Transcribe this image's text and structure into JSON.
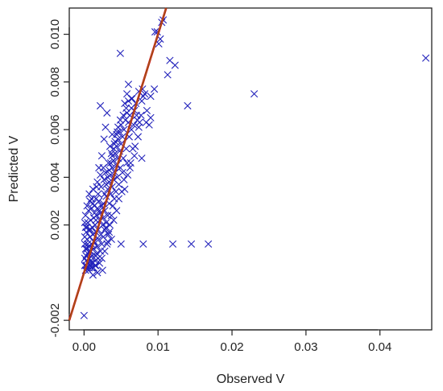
{
  "chart_data": {
    "type": "scatter",
    "title": "",
    "xlabel": "Observed V",
    "ylabel": "Predicted V",
    "xlim": [
      -0.002,
      0.047
    ],
    "ylim": [
      -0.0024,
      0.0111
    ],
    "xticks": [
      0.0,
      0.01,
      0.02,
      0.03,
      0.04
    ],
    "xtick_labels": [
      "0.00",
      "0.01",
      "0.02",
      "0.03",
      "0.04"
    ],
    "yticks": [
      -0.002,
      0.002,
      0.004,
      0.006,
      0.008,
      0.01
    ],
    "ytick_labels": [
      "-0.002",
      "0.002",
      "0.004",
      "0.006",
      "0.008",
      "0.010"
    ],
    "grid": false,
    "legend": "none",
    "marker": "x",
    "colors": {
      "points": "#2222bb",
      "fit_line": "#cc1111",
      "fit_line_inner": "#8a7a1a"
    },
    "reference_line": {
      "slope": 1.0,
      "intercept": 0.0
    },
    "series": [
      {
        "points": [
          [
            0.0,
            -0.0018
          ],
          [
            0.0002,
            0.0001
          ],
          [
            0.0004,
            0.0002
          ],
          [
            0.0006,
            0.0001
          ],
          [
            0.0008,
            0.0003
          ],
          [
            0.001,
            0.0002
          ],
          [
            0.0012,
            0.0004
          ],
          [
            0.0003,
            0.0005
          ],
          [
            0.0007,
            0.0006
          ],
          [
            0.0011,
            0.0007
          ],
          [
            0.0015,
            0.0005
          ],
          [
            0.0005,
            0.0008
          ],
          [
            0.0009,
            0.0009
          ],
          [
            0.0013,
            0.001
          ],
          [
            0.0017,
            0.0008
          ],
          [
            0.0002,
            0.001
          ],
          [
            0.0006,
            0.0011
          ],
          [
            0.001,
            0.0012
          ],
          [
            0.0014,
            0.0013
          ],
          [
            0.0018,
            0.0011
          ],
          [
            0.0004,
            0.0014
          ],
          [
            0.0008,
            0.0015
          ],
          [
            0.0012,
            0.0016
          ],
          [
            0.0016,
            0.0017
          ],
          [
            0.002,
            0.0014
          ],
          [
            0.0003,
            0.0017
          ],
          [
            0.0007,
            0.0018
          ],
          [
            0.0011,
            0.0019
          ],
          [
            0.0015,
            0.002
          ],
          [
            0.0019,
            0.0018
          ],
          [
            0.0023,
            0.0016
          ],
          [
            0.0005,
            0.0021
          ],
          [
            0.0009,
            0.0022
          ],
          [
            0.0013,
            0.0023
          ],
          [
            0.0017,
            0.0024
          ],
          [
            0.0021,
            0.0022
          ],
          [
            0.0025,
            0.002
          ],
          [
            0.0002,
            0.0024
          ],
          [
            0.0006,
            0.0026
          ],
          [
            0.001,
            0.0027
          ],
          [
            0.0014,
            0.0028
          ],
          [
            0.0018,
            0.0027
          ],
          [
            0.0022,
            0.0025
          ],
          [
            0.0008,
            0.003
          ],
          [
            0.0012,
            0.0029
          ],
          [
            0.0016,
            0.0031
          ],
          [
            0.002,
            0.003
          ],
          [
            0.0024,
            0.0028
          ],
          [
            0.0028,
            0.0026
          ],
          [
            0.0003,
            0.0003
          ],
          [
            0.0001,
            0.0006
          ],
          [
            0.0005,
            0.0012
          ],
          [
            0.0001,
            0.0015
          ],
          [
            0.0004,
            0.0019
          ],
          [
            0.0001,
            0.0021
          ],
          [
            0.0006,
            0.0004
          ],
          [
            0.0009,
            0.0005
          ],
          [
            0.0013,
            0.0002
          ],
          [
            0.0016,
            0.0003
          ],
          [
            0.0019,
            0.0006
          ],
          [
            0.0022,
            0.0009
          ],
          [
            0.0024,
            0.0012
          ],
          [
            0.0026,
            0.0015
          ],
          [
            0.0028,
            0.0018
          ],
          [
            0.003,
            0.0021
          ],
          [
            0.0032,
            0.0024
          ],
          [
            0.0026,
            0.0029
          ],
          [
            0.003,
            0.0032
          ],
          [
            0.0034,
            0.0029
          ],
          [
            0.0028,
            0.0033
          ],
          [
            0.0032,
            0.0035
          ],
          [
            0.0036,
            0.0033
          ],
          [
            0.003,
            0.0037
          ],
          [
            0.0034,
            0.0038
          ],
          [
            0.0038,
            0.0036
          ],
          [
            0.0032,
            0.004
          ],
          [
            0.0036,
            0.0041
          ],
          [
            0.004,
            0.0039
          ],
          [
            0.0034,
            0.0043
          ],
          [
            0.0038,
            0.0044
          ],
          [
            0.0042,
            0.0042
          ],
          [
            0.0036,
            0.0046
          ],
          [
            0.004,
            0.0047
          ],
          [
            0.0044,
            0.0045
          ],
          [
            0.0038,
            0.0049
          ],
          [
            0.0042,
            0.005
          ],
          [
            0.0046,
            0.0048
          ],
          [
            0.004,
            0.0052
          ],
          [
            0.0044,
            0.0053
          ],
          [
            0.0048,
            0.0051
          ],
          [
            0.0042,
            0.0055
          ],
          [
            0.0046,
            0.0056
          ],
          [
            0.005,
            0.0054
          ],
          [
            0.0044,
            0.0058
          ],
          [
            0.0048,
            0.0059
          ],
          [
            0.0052,
            0.0057
          ],
          [
            0.0046,
            0.0061
          ],
          [
            0.005,
            0.0062
          ],
          [
            0.0054,
            0.006
          ],
          [
            0.0056,
            0.0064
          ],
          [
            0.006,
            0.0063
          ],
          [
            0.0058,
            0.0067
          ],
          [
            0.0062,
            0.0066
          ],
          [
            0.0064,
            0.0069
          ],
          [
            0.0068,
            0.0068
          ],
          [
            0.0072,
            0.0064
          ],
          [
            0.0075,
            0.0063
          ],
          [
            0.007,
            0.0071
          ],
          [
            0.0078,
            0.0072
          ],
          [
            0.008,
            0.0074
          ],
          [
            0.0082,
            0.0075
          ],
          [
            0.0055,
            0.0071
          ],
          [
            0.006,
            0.0072
          ],
          [
            0.0065,
            0.0073
          ],
          [
            0.0074,
            0.0076
          ],
          [
            0.0079,
            0.0077
          ],
          [
            0.006,
            0.0079
          ],
          [
            0.0073,
            0.0057
          ],
          [
            0.0066,
            0.0052
          ],
          [
            0.0078,
            0.0048
          ],
          [
            0.0058,
            0.0046
          ],
          [
            0.0052,
            0.0042
          ],
          [
            0.0047,
            0.0037
          ],
          [
            0.0055,
            0.0035
          ],
          [
            0.0062,
            0.0044
          ],
          [
            0.0068,
            0.0049
          ],
          [
            0.0084,
            0.0063
          ],
          [
            0.0088,
            0.0062
          ],
          [
            0.009,
            0.0065
          ],
          [
            0.0085,
            0.0068
          ],
          [
            0.0026,
            0.0044
          ],
          [
            0.0022,
            0.0041
          ],
          [
            0.0018,
            0.0038
          ],
          [
            0.002,
            0.0044
          ],
          [
            0.0024,
            0.0049
          ],
          [
            0.0027,
            0.0056
          ],
          [
            0.0029,
            0.0061
          ],
          [
            0.0022,
            0.007
          ],
          [
            0.0031,
            0.0067
          ],
          [
            0.0038,
            0.0058
          ],
          [
            0.0035,
            0.0053
          ],
          [
            0.0096,
            0.0101
          ],
          [
            0.0099,
            0.0101
          ],
          [
            0.0103,
            0.0098
          ],
          [
            0.0105,
            0.0105
          ],
          [
            0.0107,
            0.0106
          ],
          [
            0.0101,
            0.0096
          ],
          [
            0.0116,
            0.0089
          ],
          [
            0.0123,
            0.0087
          ],
          [
            0.0049,
            0.0092
          ],
          [
            0.0113,
            0.0083
          ],
          [
            0.0095,
            0.0077
          ],
          [
            0.009,
            0.0074
          ],
          [
            0.014,
            0.007
          ],
          [
            0.023,
            0.0075
          ],
          [
            0.0462,
            0.009
          ],
          [
            0.008,
            0.0012
          ],
          [
            0.012,
            0.0012
          ],
          [
            0.0145,
            0.0012
          ],
          [
            0.0168,
            0.0012
          ],
          [
            0.005,
            0.0012
          ],
          [
            0.0032,
            0.0013
          ],
          [
            0.0037,
            0.0014
          ],
          [
            0.0012,
            -0.0001
          ],
          [
            0.0018,
            0.0
          ],
          [
            0.0025,
            0.0001
          ],
          [
            0.0007,
            0.0002
          ],
          [
            0.0015,
            0.0003
          ],
          [
            0.0009,
            0.0004
          ],
          [
            0.0003,
            0.0007
          ],
          [
            0.0007,
            0.0009
          ],
          [
            0.0011,
            0.0004
          ],
          [
            0.0016,
            0.0007
          ],
          [
            0.0021,
            0.0004
          ],
          [
            0.0024,
            0.0006
          ],
          [
            0.0028,
            0.0009
          ],
          [
            0.0031,
            0.0012
          ],
          [
            0.0033,
            0.0016
          ],
          [
            0.0035,
            0.002
          ],
          [
            0.0037,
            0.0024
          ],
          [
            0.0039,
            0.0028
          ],
          [
            0.0041,
            0.0031
          ],
          [
            0.0043,
            0.0034
          ],
          [
            0.0045,
            0.004
          ],
          [
            0.0049,
            0.0044
          ],
          [
            0.0053,
            0.0048
          ],
          [
            0.0057,
            0.0052
          ],
          [
            0.0061,
            0.0057
          ],
          [
            0.0064,
            0.006
          ],
          [
            0.0067,
            0.0062
          ],
          [
            0.0071,
            0.0066
          ],
          [
            0.0019,
            0.0033
          ],
          [
            0.0023,
            0.0036
          ],
          [
            0.0027,
            0.0039
          ],
          [
            0.0029,
            0.0042
          ],
          [
            0.0033,
            0.0046
          ],
          [
            0.0037,
            0.005
          ],
          [
            0.0041,
            0.0054
          ],
          [
            0.0045,
            0.0059
          ],
          [
            0.0049,
            0.0064
          ],
          [
            0.0053,
            0.0066
          ],
          [
            0.0057,
            0.0069
          ],
          [
            0.0014,
            0.0025
          ],
          [
            0.0016,
            0.0022
          ],
          [
            0.0009,
            0.0018
          ],
          [
            0.0013,
            0.0013
          ],
          [
            0.0004,
            0.001
          ],
          [
            0.0001,
            0.0012
          ],
          [
            0.0001,
            0.0003
          ],
          [
            0.0002,
            0.0019
          ],
          [
            0.0004,
            0.0028
          ],
          [
            0.001,
            0.0031
          ],
          [
            0.0007,
            0.0033
          ],
          [
            0.0012,
            0.0035
          ],
          [
            0.0017,
            0.0036
          ],
          [
            0.0021,
            0.0026
          ],
          [
            0.0026,
            0.0023
          ],
          [
            0.003,
            0.0019
          ],
          [
            0.0034,
            0.0017
          ],
          [
            0.004,
            0.0022
          ],
          [
            0.0044,
            0.0026
          ],
          [
            0.0047,
            0.0031
          ],
          [
            0.0051,
            0.0034
          ],
          [
            0.0054,
            0.0039
          ],
          [
            0.0059,
            0.0041
          ],
          [
            0.0063,
            0.0046
          ],
          [
            0.0069,
            0.0053
          ],
          [
            0.0074,
            0.0061
          ],
          [
            0.0077,
            0.0066
          ],
          [
            0.0064,
            0.0073
          ],
          [
            0.0058,
            0.0075
          ]
        ]
      }
    ]
  }
}
